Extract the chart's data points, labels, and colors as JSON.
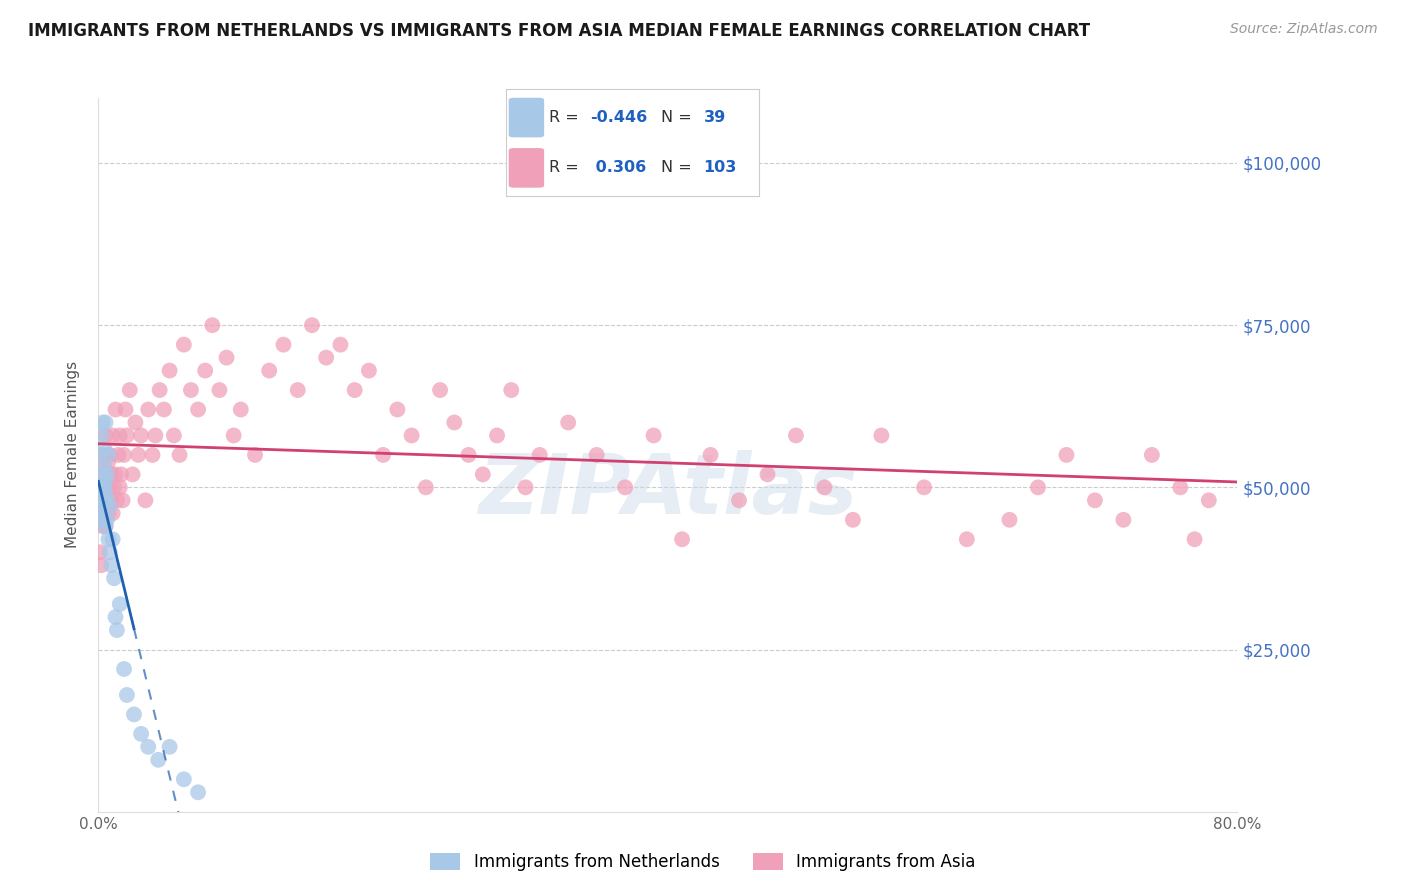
{
  "title": "IMMIGRANTS FROM NETHERLANDS VS IMMIGRANTS FROM ASIA MEDIAN FEMALE EARNINGS CORRELATION CHART",
  "source": "Source: ZipAtlas.com",
  "ylabel": "Median Female Earnings",
  "background_color": "#ffffff",
  "watermark": "ZIPAtlas",
  "netherlands_R": -0.446,
  "netherlands_N": 39,
  "asia_R": 0.306,
  "asia_N": 103,
  "netherlands_color": "#a8c8e8",
  "netherlands_line_color": "#2060b0",
  "asia_color": "#f0a0b8",
  "asia_line_color": "#d04070",
  "xlim": [
    0.0,
    0.8
  ],
  "ylim": [
    0,
    110000
  ],
  "ytick_labels": [
    "",
    "$25,000",
    "$50,000",
    "$75,000",
    "$100,000"
  ],
  "ytick_positions": [
    0,
    25000,
    50000,
    75000,
    100000
  ],
  "netherlands_x": [
    0.001,
    0.001,
    0.002,
    0.002,
    0.002,
    0.003,
    0.003,
    0.003,
    0.003,
    0.004,
    0.004,
    0.004,
    0.004,
    0.005,
    0.005,
    0.005,
    0.005,
    0.006,
    0.006,
    0.006,
    0.007,
    0.007,
    0.008,
    0.008,
    0.009,
    0.01,
    0.011,
    0.012,
    0.013,
    0.015,
    0.018,
    0.02,
    0.025,
    0.03,
    0.035,
    0.042,
    0.05,
    0.06,
    0.07
  ],
  "netherlands_y": [
    46000,
    55000,
    50000,
    58000,
    48000,
    52000,
    60000,
    47000,
    45000,
    50000,
    53000,
    48000,
    56000,
    49000,
    44000,
    51000,
    60000,
    45000,
    48000,
    52000,
    42000,
    55000,
    40000,
    47000,
    38000,
    42000,
    36000,
    30000,
    28000,
    32000,
    22000,
    18000,
    15000,
    12000,
    10000,
    8000,
    10000,
    5000,
    3000
  ],
  "asia_x": [
    0.001,
    0.001,
    0.002,
    0.002,
    0.002,
    0.003,
    0.003,
    0.003,
    0.004,
    0.004,
    0.004,
    0.005,
    0.005,
    0.005,
    0.006,
    0.006,
    0.007,
    0.007,
    0.008,
    0.008,
    0.009,
    0.009,
    0.01,
    0.01,
    0.011,
    0.012,
    0.012,
    0.013,
    0.014,
    0.015,
    0.015,
    0.016,
    0.017,
    0.018,
    0.019,
    0.02,
    0.022,
    0.024,
    0.026,
    0.028,
    0.03,
    0.033,
    0.035,
    0.038,
    0.04,
    0.043,
    0.046,
    0.05,
    0.053,
    0.057,
    0.06,
    0.065,
    0.07,
    0.075,
    0.08,
    0.085,
    0.09,
    0.095,
    0.1,
    0.11,
    0.12,
    0.13,
    0.14,
    0.15,
    0.16,
    0.17,
    0.18,
    0.19,
    0.2,
    0.21,
    0.22,
    0.23,
    0.24,
    0.25,
    0.26,
    0.27,
    0.28,
    0.29,
    0.3,
    0.31,
    0.33,
    0.35,
    0.37,
    0.39,
    0.41,
    0.43,
    0.45,
    0.47,
    0.49,
    0.51,
    0.53,
    0.55,
    0.58,
    0.61,
    0.64,
    0.66,
    0.68,
    0.7,
    0.72,
    0.74,
    0.76,
    0.77,
    0.78
  ],
  "asia_y": [
    40000,
    45000,
    38000,
    48000,
    52000,
    44000,
    50000,
    55000,
    47000,
    53000,
    46000,
    50000,
    58000,
    44000,
    52000,
    48000,
    46000,
    54000,
    50000,
    55000,
    48000,
    52000,
    46000,
    58000,
    50000,
    52000,
    62000,
    48000,
    55000,
    50000,
    58000,
    52000,
    48000,
    55000,
    62000,
    58000,
    65000,
    52000,
    60000,
    55000,
    58000,
    48000,
    62000,
    55000,
    58000,
    65000,
    62000,
    68000,
    58000,
    55000,
    72000,
    65000,
    62000,
    68000,
    75000,
    65000,
    70000,
    58000,
    62000,
    55000,
    68000,
    72000,
    65000,
    75000,
    70000,
    72000,
    65000,
    68000,
    55000,
    62000,
    58000,
    50000,
    65000,
    60000,
    55000,
    52000,
    58000,
    65000,
    50000,
    55000,
    60000,
    55000,
    50000,
    58000,
    42000,
    55000,
    48000,
    52000,
    58000,
    50000,
    45000,
    58000,
    50000,
    42000,
    45000,
    50000,
    55000,
    48000,
    45000,
    55000,
    50000,
    42000,
    48000
  ]
}
